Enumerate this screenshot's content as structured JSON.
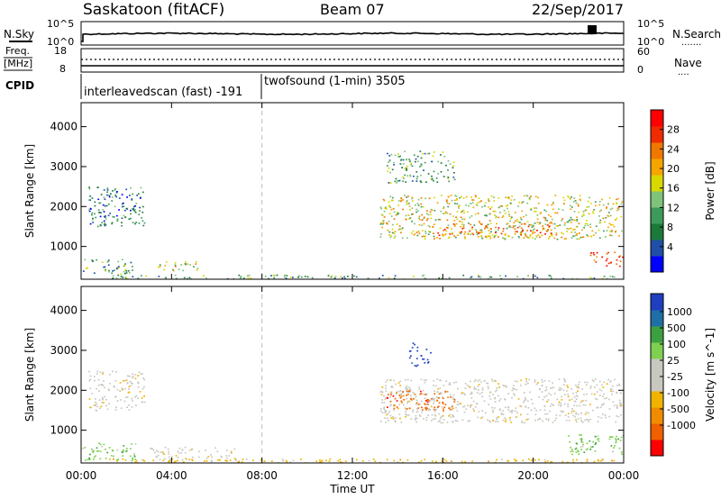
{
  "header": {
    "station": "Saskatoon (fitACF)",
    "beam": "Beam 07",
    "date": "22/Sep/2017"
  },
  "top_panels": {
    "nsky": {
      "label": "N.Sky",
      "ticks": [
        "10^5",
        "10^0"
      ],
      "right_ticks": [
        "10^5",
        "10^0"
      ],
      "right_label": "N.Search",
      "right_legend": "......."
    },
    "freq": {
      "label_top": "Freq.",
      "label_unit": "[MHz]",
      "ticks": [
        "18",
        "8"
      ],
      "right_ticks": [
        "60",
        "0"
      ],
      "right_label": "Nave",
      "right_legend": "...."
    },
    "cpid": {
      "label": "CPID",
      "modes": [
        "interleavedscan (fast) -191",
        "twofsound (1-min) 3505"
      ]
    }
  },
  "chart_data": [
    {
      "type": "heatmap",
      "name": "power",
      "ylabel": "Slant Range [km]",
      "xlabel": "",
      "x_ticks": [
        "00:00",
        "04:00",
        "08:00",
        "12:00",
        "16:00",
        "20:00",
        "00:00"
      ],
      "x_range_hours": [
        0,
        24
      ],
      "y_ticks": [
        1000,
        2000,
        3000,
        4000
      ],
      "y_range_km": [
        180,
        4600
      ],
      "colorbar_label": "Power [dB]",
      "colorbar_ticks": [
        "28",
        "24",
        "20",
        "16",
        "12",
        "8",
        "4"
      ],
      "colorbar_range": [
        0,
        32
      ],
      "colors": [
        "#0000ff",
        "#1f4fa6",
        "#1b7a3a",
        "#3d9a5a",
        "#7fc37a",
        "#d8d800",
        "#f6a500",
        "#f07800",
        "#ef2b00",
        "#ff0000"
      ],
      "regions": [
        {
          "t0": 0.0,
          "t1": 2.4,
          "r0": 250,
          "r1": 700,
          "level": 12
        },
        {
          "t0": 0.3,
          "t1": 2.8,
          "r0": 1500,
          "r1": 2500,
          "level": 8
        },
        {
          "t0": 3.3,
          "t1": 5.2,
          "r0": 400,
          "r1": 650,
          "level": 18
        },
        {
          "t0": 1.0,
          "t1": 23.8,
          "r0": 180,
          "r1": 300,
          "level": 10
        },
        {
          "t0": 13.2,
          "t1": 23.9,
          "r0": 1200,
          "r1": 2300,
          "level": 16
        },
        {
          "t0": 15.5,
          "t1": 21.0,
          "r0": 1250,
          "r1": 1600,
          "level": 26
        },
        {
          "t0": 13.5,
          "t1": 16.5,
          "r0": 2600,
          "r1": 3400,
          "level": 10
        },
        {
          "t0": 22.5,
          "t1": 24.0,
          "r0": 500,
          "r1": 900,
          "level": 28
        }
      ]
    },
    {
      "type": "heatmap",
      "name": "velocity",
      "ylabel": "Slant Range [km]",
      "xlabel": "Time UT",
      "x_ticks": [
        "00:00",
        "04:00",
        "08:00",
        "12:00",
        "16:00",
        "20:00",
        "00:00"
      ],
      "x_range_hours": [
        0,
        24
      ],
      "y_ticks": [
        1000,
        2000,
        3000,
        4000
      ],
      "y_range_km": [
        180,
        4600
      ],
      "colorbar_label": "Velocity [m s^-1]",
      "colorbar_ticks": [
        "1000",
        "500",
        "100",
        "25",
        "-25",
        "-100",
        "-500",
        "-1000"
      ],
      "colors": [
        "#ff0000",
        "#f06000",
        "#f08c00",
        "#f0b400",
        "#c8c8c0",
        "#c8c8c0",
        "#7fd050",
        "#3da040",
        "#1f6fa6",
        "#1f3fc0"
      ],
      "regions": [
        {
          "t0": 0.0,
          "t1": 2.4,
          "r0": 250,
          "r1": 700,
          "level": "100"
        },
        {
          "t0": 0.3,
          "t1": 2.8,
          "r0": 1500,
          "r1": 2500,
          "level": "25"
        },
        {
          "t0": 3.0,
          "t1": 7.0,
          "r0": 250,
          "r1": 600,
          "level": "25"
        },
        {
          "t0": 1.0,
          "t1": 23.8,
          "r0": 180,
          "r1": 300,
          "level": "-100"
        },
        {
          "t0": 13.2,
          "t1": 23.9,
          "r0": 1200,
          "r1": 2300,
          "level": "25"
        },
        {
          "t0": 13.5,
          "t1": 16.5,
          "r0": 1500,
          "r1": 2000,
          "level": "-500"
        },
        {
          "t0": 14.5,
          "t1": 15.5,
          "r0": 2600,
          "r1": 3200,
          "level": "1000"
        },
        {
          "t0": 21.5,
          "t1": 24.0,
          "r0": 400,
          "r1": 900,
          "level": "100"
        }
      ]
    }
  ]
}
